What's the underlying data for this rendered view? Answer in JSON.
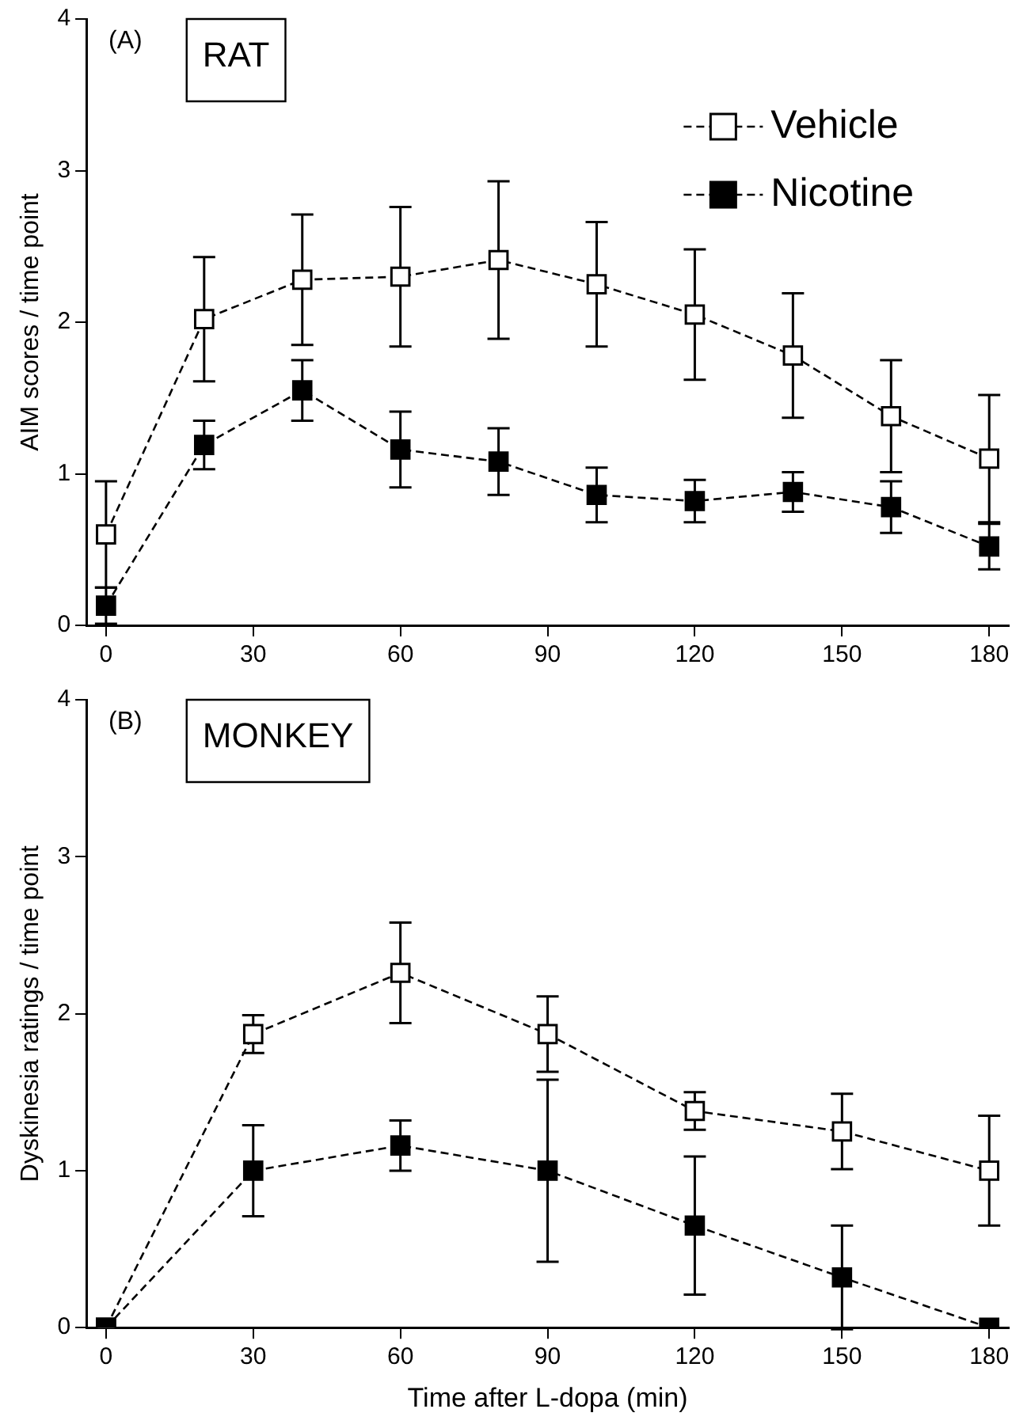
{
  "chart_data": [
    {
      "type": "line",
      "ylabel": "AIM scores / time point",
      "annotations": [
        "(A)",
        "RAT"
      ],
      "x": [
        0,
        20,
        40,
        60,
        80,
        100,
        120,
        140,
        160,
        180
      ],
      "xlim": [
        -4,
        184
      ],
      "xticks": [
        0,
        30,
        60,
        90,
        120,
        150,
        180
      ],
      "ylim": [
        0,
        4
      ],
      "yticks": [
        0,
        1,
        2,
        3,
        4
      ],
      "legend": "top right",
      "marker": "square",
      "line_style": "dashed",
      "grid": false,
      "series": [
        {
          "name": "Vehicle",
          "color": "#000000",
          "values": [
            0.6,
            2.02,
            2.28,
            2.3,
            2.41,
            2.25,
            2.05,
            1.78,
            1.38,
            1.1
          ],
          "errors": [
            0.35,
            0.41,
            0.43,
            0.46,
            0.52,
            0.41,
            0.43,
            0.41,
            0.37,
            0.42
          ]
        },
        {
          "name": "Nicotine",
          "color": "#000000",
          "values": [
            0.13,
            1.19,
            1.55,
            1.16,
            1.08,
            0.86,
            0.82,
            0.88,
            0.78,
            0.52
          ],
          "errors": [
            0.12,
            0.16,
            0.2,
            0.25,
            0.22,
            0.18,
            0.14,
            0.13,
            0.17,
            0.15
          ]
        }
      ]
    },
    {
      "type": "line",
      "ylabel": "Dyskinesia ratings / time point",
      "xlabel": "Time after L-dopa (min)",
      "annotations": [
        "(B)",
        "MONKEY"
      ],
      "x": [
        0,
        30,
        60,
        90,
        120,
        150,
        180
      ],
      "xlim": [
        -4,
        184
      ],
      "xticks": [
        0,
        30,
        60,
        90,
        120,
        150,
        180
      ],
      "ylim": [
        0,
        4
      ],
      "yticks": [
        0,
        1,
        2,
        3,
        4
      ],
      "marker": "square",
      "line_style": "dashed",
      "grid": false,
      "series": [
        {
          "color": "#000000",
          "values": [
            0,
            1.87,
            2.26,
            1.87,
            1.38,
            1.25,
            1.0
          ],
          "errors": [
            null,
            0.12,
            0.32,
            0.24,
            0.12,
            0.24,
            0.35
          ]
        },
        {
          "color": "#000000",
          "values": [
            0,
            1.0,
            1.16,
            1.0,
            0.65,
            0.32,
            0
          ],
          "errors": [
            null,
            0.29,
            0.16,
            0.58,
            0.44,
            0.33,
            null
          ]
        }
      ]
    }
  ]
}
